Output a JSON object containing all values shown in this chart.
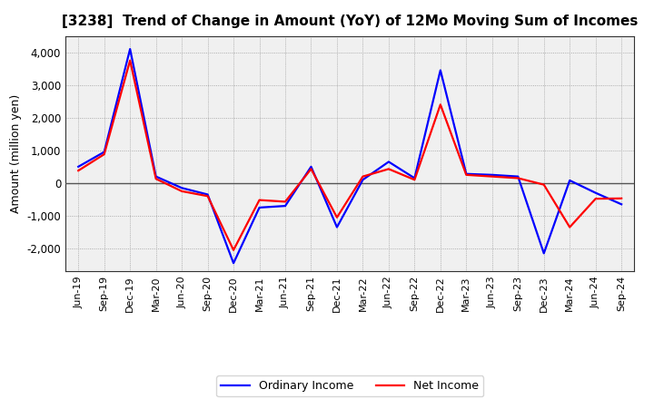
{
  "title": "[3238]  Trend of Change in Amount (YoY) of 12Mo Moving Sum of Incomes",
  "ylabel": "Amount (million yen)",
  "x_labels": [
    "Jun-19",
    "Sep-19",
    "Dec-19",
    "Mar-20",
    "Jun-20",
    "Sep-20",
    "Dec-20",
    "Mar-21",
    "Jun-21",
    "Sep-21",
    "Dec-21",
    "Mar-22",
    "Jun-22",
    "Sep-22",
    "Dec-22",
    "Mar-23",
    "Jun-23",
    "Sep-23",
    "Dec-23",
    "Mar-24",
    "Jun-24",
    "Sep-24"
  ],
  "ordinary_income": [
    500,
    950,
    4100,
    200,
    -150,
    -350,
    -2450,
    -750,
    -700,
    500,
    -1350,
    100,
    650,
    150,
    3450,
    280,
    250,
    200,
    -2150,
    80,
    -300,
    -650
  ],
  "net_income": [
    380,
    880,
    3750,
    130,
    -250,
    -400,
    -2050,
    -520,
    -570,
    430,
    -1050,
    200,
    430,
    100,
    2400,
    250,
    200,
    150,
    -50,
    -1350,
    -480,
    -470
  ],
  "ordinary_color": "#0000ff",
  "net_color": "#ff0000",
  "line_width": 1.6,
  "ylim": [
    -2700,
    4500
  ],
  "yticks": [
    -2000,
    -1000,
    0,
    1000,
    2000,
    3000,
    4000
  ],
  "plot_bg_color": "#f0f0f0",
  "background_color": "#ffffff",
  "grid_color": "#999999",
  "zero_line_color": "#555555",
  "legend_ordinary": "Ordinary Income",
  "legend_net": "Net Income",
  "title_fontsize": 11,
  "ylabel_fontsize": 9,
  "tick_fontsize": 8,
  "legend_fontsize": 9
}
